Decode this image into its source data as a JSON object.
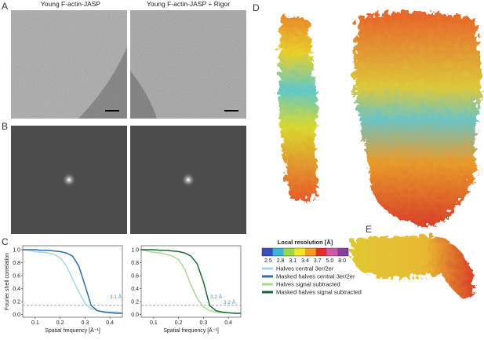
{
  "panels": {
    "a": {
      "letter": "A",
      "titles": [
        "Young F-actin-JASP",
        "Young F-actin-JASP + Rigor"
      ]
    },
    "b": {
      "letter": "B"
    },
    "c": {
      "letter": "C"
    },
    "d": {
      "letter": "D"
    },
    "e": {
      "letter": "E"
    }
  },
  "chart_data": [
    {
      "type": "line",
      "ylabel": "Fourier shell correlation",
      "xlabel": "Spatial frequency [Å⁻¹]",
      "x": [
        0.05,
        0.075,
        0.1,
        0.125,
        0.15,
        0.175,
        0.2,
        0.225,
        0.25,
        0.275,
        0.3,
        0.325,
        0.35,
        0.375,
        0.4,
        0.425,
        0.45
      ],
      "series": [
        {
          "name": "Halves central 3er/2er",
          "color": "#a6d3ee",
          "values": [
            1.0,
            0.99,
            0.97,
            0.96,
            0.95,
            0.93,
            0.88,
            0.75,
            0.55,
            0.35,
            0.17,
            0.09,
            0.06,
            0.05,
            0.04,
            0.04,
            0.03
          ]
        },
        {
          "name": "Masked halves central 3er/2er",
          "color": "#2f6ea3",
          "values": [
            1.0,
            1.0,
            1.0,
            0.99,
            0.99,
            0.98,
            0.97,
            0.95,
            0.9,
            0.75,
            0.45,
            0.14,
            0.06,
            0.04,
            0.03,
            0.02,
            0.02
          ]
        }
      ],
      "threshold": 0.143,
      "annotations": [
        "3.1 Å"
      ],
      "xlim": [
        0.05,
        0.45
      ],
      "ylim": [
        -0.04,
        1.06
      ],
      "xticks": [
        0.1,
        0.2,
        0.3,
        0.4
      ],
      "yticks": [
        {
          "value": 0,
          "label": "0.0"
        },
        0.2,
        0.4,
        0.6,
        0.8,
        {
          "value": 1,
          "label": "1.0"
        }
      ]
    },
    {
      "type": "line",
      "xlabel": "Spatial frequency [Å⁻¹]",
      "x": [
        0.05,
        0.075,
        0.1,
        0.125,
        0.15,
        0.175,
        0.2,
        0.225,
        0.25,
        0.275,
        0.3,
        0.325,
        0.35,
        0.375,
        0.4,
        0.425,
        0.45
      ],
      "series": [
        {
          "name": "Halves signal subtracted",
          "color": "#a8d990",
          "values": [
            1.0,
            0.98,
            0.96,
            0.95,
            0.93,
            0.9,
            0.85,
            0.7,
            0.45,
            0.25,
            0.12,
            0.06,
            0.04,
            0.03,
            0.03,
            0.02,
            0.02
          ]
        },
        {
          "name": "Masked halves signal subtracted",
          "color": "#1b6b3a",
          "values": [
            1.0,
            1.0,
            1.0,
            0.99,
            0.99,
            0.98,
            0.97,
            0.95,
            0.9,
            0.78,
            0.5,
            0.14,
            0.06,
            0.04,
            0.03,
            0.02,
            0.02
          ]
        }
      ],
      "threshold": 0.143,
      "annotations": [
        "3.2 Å",
        "3.2 Å"
      ],
      "xlim": [
        0.05,
        0.45
      ],
      "ylim": [
        -0.04,
        1.06
      ],
      "xticks": [
        0.1,
        0.2,
        0.3,
        0.4
      ],
      "yticks": [
        {
          "value": 0,
          "label": "0.0"
        },
        0.2,
        0.4,
        0.6,
        0.8,
        {
          "value": 1,
          "label": "1.0"
        }
      ]
    },
    {
      "type": "colorbar",
      "title": "Local resolution [Å]",
      "categories": [
        "2.5",
        "2.8",
        "3.1",
        "3.4",
        "3.7",
        "5.0",
        "8.0"
      ],
      "colors": [
        "#3b4cc0",
        "#37b6d6",
        "#9ad84a",
        "#f5e52a",
        "#f59a24",
        "#e0302c",
        "#d05aa8",
        "#8a3fa0"
      ]
    }
  ]
}
